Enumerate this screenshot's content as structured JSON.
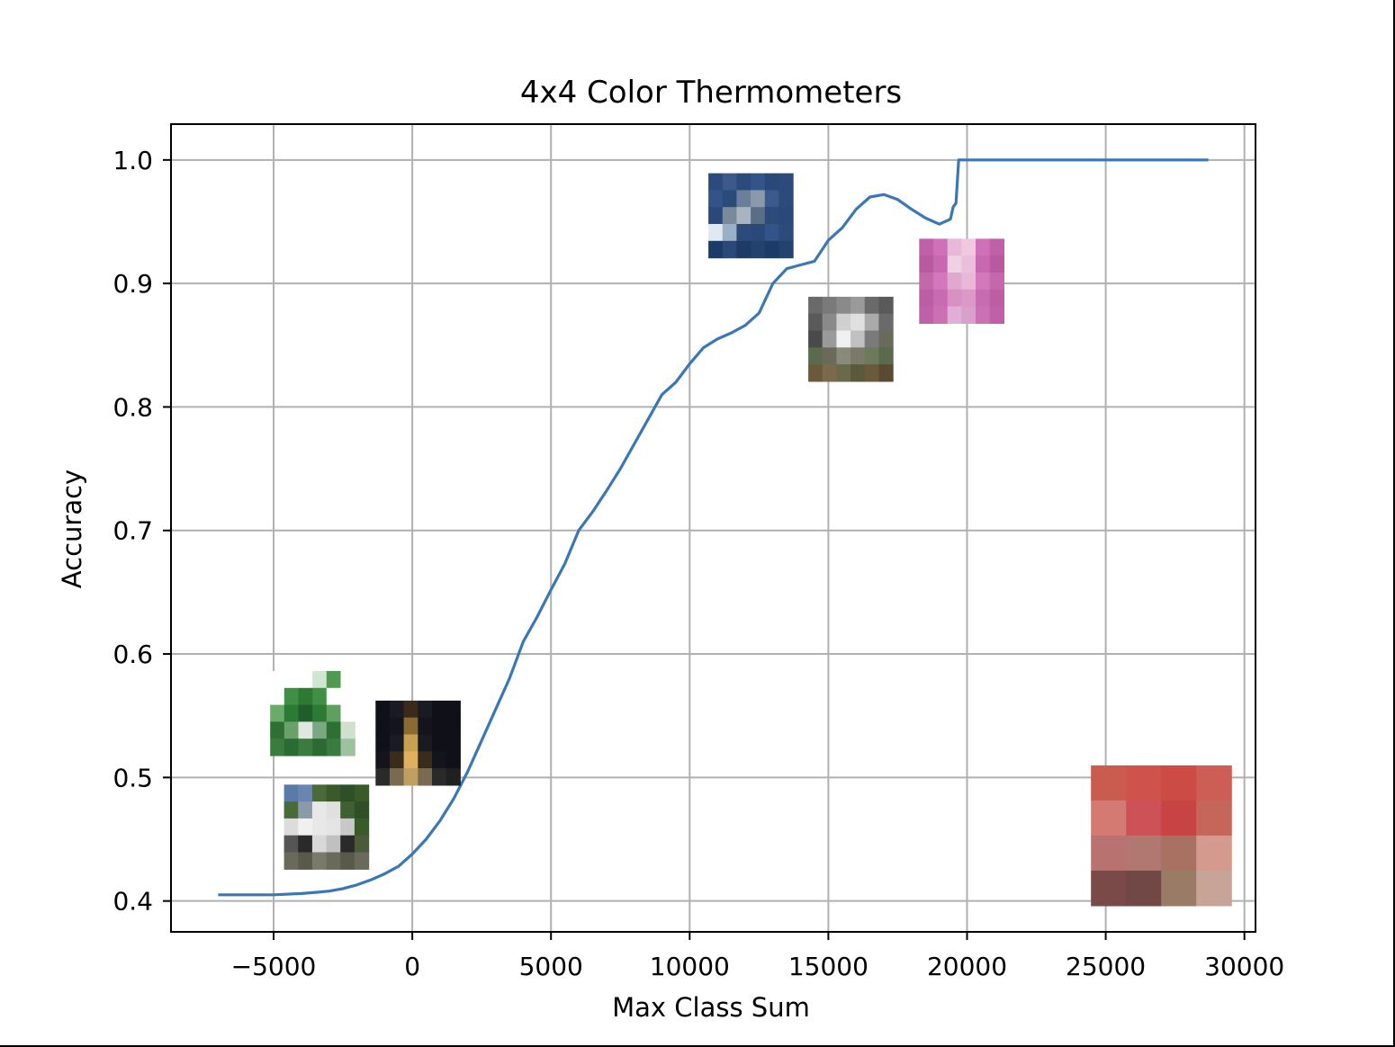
{
  "chart_data": {
    "type": "line",
    "title": "4x4 Color Thermometers",
    "xlabel": "Max Class Sum",
    "ylabel": "Accuracy",
    "xlim": [
      -8700,
      30400
    ],
    "ylim": [
      0.375,
      1.029
    ],
    "grid": true,
    "line_color": "#3a78b5",
    "x_ticks": [
      {
        "value": -5000,
        "label": "−5000"
      },
      {
        "value": 0,
        "label": "0"
      },
      {
        "value": 5000,
        "label": "5000"
      },
      {
        "value": 10000,
        "label": "10000"
      },
      {
        "value": 15000,
        "label": "15000"
      },
      {
        "value": 20000,
        "label": "20000"
      },
      {
        "value": 25000,
        "label": "25000"
      },
      {
        "value": 30000,
        "label": "30000"
      }
    ],
    "y_ticks": [
      {
        "value": 0.4,
        "label": "0.4"
      },
      {
        "value": 0.5,
        "label": "0.5"
      },
      {
        "value": 0.6,
        "label": "0.6"
      },
      {
        "value": 0.7,
        "label": "0.7"
      },
      {
        "value": 0.8,
        "label": "0.8"
      },
      {
        "value": 0.9,
        "label": "0.9"
      },
      {
        "value": 1.0,
        "label": "1.0"
      }
    ],
    "series": [
      {
        "x": [
          -7000,
          -6000,
          -5000,
          -4000,
          -3500,
          -3000,
          -2500,
          -2000,
          -1500,
          -1000,
          -500,
          0,
          500,
          1000,
          1500,
          2000,
          2500,
          3000,
          3500,
          4000,
          4500,
          5000,
          5500,
          6000,
          6500,
          7000,
          7500,
          8000,
          8500,
          9000,
          9500,
          10000,
          10500,
          11000,
          11500,
          12000,
          12500,
          13000,
          13500,
          14000,
          14500,
          15000,
          15500,
          16000,
          16500,
          17000,
          17500,
          18000,
          18500,
          19000,
          19400,
          19500,
          19600,
          19700,
          20000,
          21000,
          22000,
          24000,
          26000,
          28000,
          28700
        ],
        "y": [
          0.405,
          0.405,
          0.405,
          0.406,
          0.407,
          0.408,
          0.41,
          0.413,
          0.417,
          0.422,
          0.428,
          0.438,
          0.45,
          0.465,
          0.483,
          0.505,
          0.53,
          0.555,
          0.58,
          0.61,
          0.63,
          0.652,
          0.673,
          0.7,
          0.715,
          0.732,
          0.75,
          0.77,
          0.79,
          0.81,
          0.82,
          0.835,
          0.848,
          0.855,
          0.86,
          0.866,
          0.876,
          0.9,
          0.912,
          0.915,
          0.918,
          0.935,
          0.945,
          0.96,
          0.97,
          0.972,
          0.968,
          0.96,
          0.953,
          0.948,
          0.952,
          0.962,
          0.965,
          1.0,
          1.0,
          1.0,
          1.0,
          1.0,
          1.0,
          1.0,
          1.0
        ]
      }
    ],
    "image_markers": [
      {
        "name": "tank",
        "x": -3600,
        "y": 0.552,
        "colors": [
          [
            "#ffffff",
            "#ffffff",
            "#ffffff",
            "#cfe6cf",
            "#4f9a4f",
            "#ffffff"
          ],
          [
            "#ffffff",
            "#3f8f46",
            "#2d7a35",
            "#3f8f46",
            "#ffffff",
            "#ffffff"
          ],
          [
            "#6aaa6a",
            "#2d7a35",
            "#1f5e2a",
            "#2d7a35",
            "#5da060",
            "#ffffff"
          ],
          [
            "#2f6f34",
            "#6aa06a",
            "#dfe8df",
            "#7aa880",
            "#2f6f34",
            "#cfe0cf"
          ],
          [
            "#3a7c40",
            "#2c6a33",
            "#3a7c40",
            "#2c6a33",
            "#3a7c40",
            "#9ec2a0"
          ]
        ]
      },
      {
        "name": "eiffel-tower",
        "x": 200,
        "y": 0.528,
        "colors": [
          [
            "#101018",
            "#1a1a22",
            "#3a2a18",
            "#1a1a22",
            "#101018",
            "#101018"
          ],
          [
            "#101018",
            "#14141c",
            "#8a6a30",
            "#14141c",
            "#101018",
            "#101018"
          ],
          [
            "#101018",
            "#1a1a22",
            "#c8a050",
            "#1a1a22",
            "#101018",
            "#101018"
          ],
          [
            "#14141c",
            "#3a2c1a",
            "#e0b060",
            "#3a2c1a",
            "#14141c",
            "#101018"
          ],
          [
            "#2a2a2a",
            "#7a6a50",
            "#c0a060",
            "#7a6a50",
            "#2a2a2a",
            "#202020"
          ]
        ]
      },
      {
        "name": "pickup-truck",
        "x": -3100,
        "y": 0.46,
        "colors": [
          [
            "#5a7aa8",
            "#6a86b0",
            "#4a6a3a",
            "#3a5a2a",
            "#2f4f28",
            "#3a5a2a"
          ],
          [
            "#4a6a3a",
            "#8a9aa8",
            "#e8e8e8",
            "#e0e0e0",
            "#3f6030",
            "#2f4f28"
          ],
          [
            "#dcdcdc",
            "#f0f0f0",
            "#e8e8e8",
            "#e4e4e4",
            "#c8c8c8",
            "#3a5a2a"
          ],
          [
            "#555555",
            "#2a2a2a",
            "#d8d8d8",
            "#c0c0c0",
            "#2a2a2a",
            "#4a5a3a"
          ],
          [
            "#6a6a5a",
            "#5a5a4a",
            "#7a7a6a",
            "#6a6a5a",
            "#5a5a4a",
            "#6a6a5a"
          ]
        ]
      },
      {
        "name": "dolphin",
        "x": 12200,
        "y": 0.955,
        "colors": [
          [
            "#2c4a7a",
            "#3a5a8c",
            "#2c4a7a",
            "#33548a",
            "#2a4878",
            "#2c4a7a"
          ],
          [
            "#33548a",
            "#2c4a7a",
            "#6a7f99",
            "#8a9aaa",
            "#3a5a8c",
            "#2c4a7a"
          ],
          [
            "#2a4878",
            "#7a8a9a",
            "#aab4c0",
            "#5a6e88",
            "#2c4a7a",
            "#2a4878"
          ],
          [
            "#e0e8f0",
            "#9ab0c8",
            "#2c4a7a",
            "#2a4878",
            "#33548a",
            "#2c4a7a"
          ],
          [
            "#1e3a66",
            "#2a4878",
            "#1e3a66",
            "#24426e",
            "#1e3a66",
            "#24426e"
          ]
        ]
      },
      {
        "name": "opossum",
        "x": 15800,
        "y": 0.855,
        "colors": [
          [
            "#6a6a6a",
            "#7a7a7a",
            "#8a8a8a",
            "#9a9a9a",
            "#6a6a6a",
            "#5a5a5a"
          ],
          [
            "#5a5a5a",
            "#8a8a8a",
            "#d0d0d0",
            "#e0e0e0",
            "#aaaaaa",
            "#6a6a6a"
          ],
          [
            "#4a4a4a",
            "#9a9a9a",
            "#f0f0f0",
            "#c0c0c0",
            "#7a7a7a",
            "#6a6a5a"
          ],
          [
            "#5a6a4a",
            "#6a6a5a",
            "#8a8a7a",
            "#7a7a6a",
            "#6a7a5a",
            "#5a6a4a"
          ],
          [
            "#6a5a3a",
            "#7a6a4a",
            "#6a6a4a",
            "#5a5a3a",
            "#6a5a3a",
            "#5a4a30"
          ]
        ]
      },
      {
        "name": "pink-texture",
        "x": 19800,
        "y": 0.902,
        "colors": [
          [
            "#c060a8",
            "#d070b8",
            "#e8b8d8",
            "#f0c8e0",
            "#d070b8",
            "#c060a8"
          ],
          [
            "#b85aa0",
            "#c868b0",
            "#f0d0e4",
            "#e8c0dc",
            "#c868b0",
            "#b85aa0"
          ],
          [
            "#c468ac",
            "#d478bc",
            "#e0a8d0",
            "#e8b8d8",
            "#d478bc",
            "#c468ac"
          ],
          [
            "#bc5ea4",
            "#c86cb2",
            "#d890c4",
            "#dc98c8",
            "#c86cb2",
            "#bc5ea4"
          ],
          [
            "#c060a8",
            "#cc70b4",
            "#e0b0d4",
            "#d8a0cc",
            "#cc70b4",
            "#c060a8"
          ]
        ]
      }
    ],
    "thermometer_grid": {
      "x": 27000,
      "y": 0.453,
      "colors": [
        [
          "#c95b4f",
          "#cf534c",
          "#cd4b45",
          "#cc5e55"
        ],
        [
          "#d57a73",
          "#cc5258",
          "#c84444",
          "#c6665a"
        ],
        [
          "#b87270",
          "#b07871",
          "#a87162",
          "#d49a8e"
        ],
        [
          "#7a4a48",
          "#714846",
          "#9a7c66",
          "#c8a498"
        ]
      ]
    }
  }
}
